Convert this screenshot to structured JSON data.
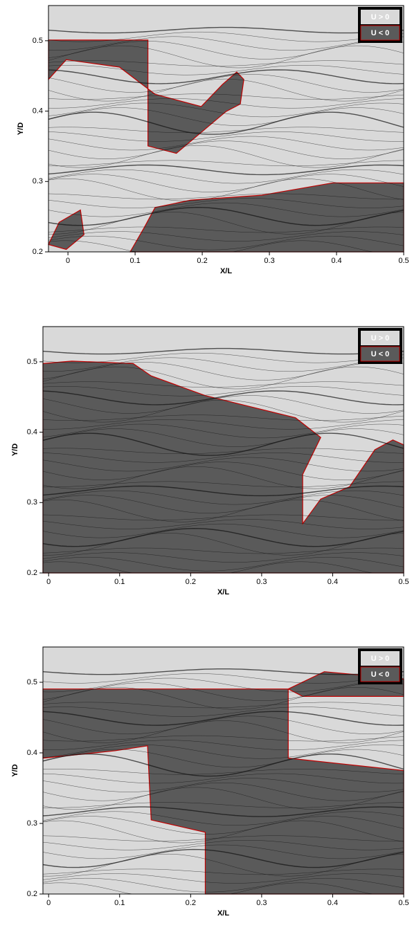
{
  "chart_data": [
    {
      "type": "contour",
      "xlabel": "X/L",
      "ylabel": "Y/D",
      "xlim": [
        -0.029,
        0.5
      ],
      "ylim": [
        0.2,
        0.55
      ],
      "xticks": [
        0,
        0.1,
        0.2,
        0.3,
        0.4,
        0.5
      ],
      "yticks": [
        0.2,
        0.3,
        0.4,
        0.5
      ],
      "legend": [
        {
          "name": "U > 0",
          "color": "#d9d9d9"
        },
        {
          "name": "U < 0",
          "color": "#5a5a5a"
        }
      ],
      "legend_position": "upper right"
    },
    {
      "type": "contour",
      "xlabel": "X/L",
      "ylabel": "Y/D",
      "xlim": [
        -0.008,
        0.5
      ],
      "ylim": [
        0.2,
        0.55
      ],
      "xticks": [
        0,
        0.1,
        0.2,
        0.3,
        0.4,
        0.5
      ],
      "yticks": [
        0.2,
        0.3,
        0.4,
        0.5
      ],
      "legend": [
        {
          "name": "U > 0",
          "color": "#d9d9d9"
        },
        {
          "name": "U < 0",
          "color": "#5a5a5a"
        }
      ],
      "legend_position": "upper right"
    },
    {
      "type": "contour",
      "xlabel": "X/L",
      "ylabel": "Y/D",
      "xlim": [
        -0.008,
        0.5
      ],
      "ylim": [
        0.2,
        0.55
      ],
      "xticks": [
        0,
        0.1,
        0.2,
        0.3,
        0.4,
        0.5
      ],
      "yticks": [
        0.2,
        0.3,
        0.4,
        0.5
      ],
      "legend": [
        {
          "name": "U > 0",
          "color": "#d9d9d9"
        },
        {
          "name": "U < 0",
          "color": "#5a5a5a"
        }
      ],
      "legend_position": "upper right"
    }
  ]
}
